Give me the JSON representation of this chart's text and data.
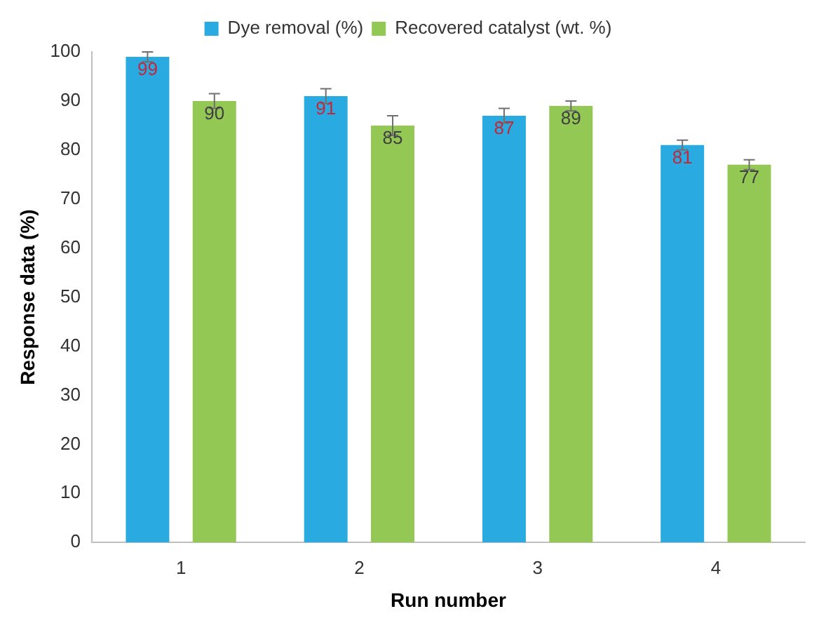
{
  "chart_data": {
    "type": "bar",
    "xlabel": "Run number",
    "ylabel": "Response data (%)",
    "categories": [
      "1",
      "2",
      "3",
      "4"
    ],
    "series": [
      {
        "name": "Dye removal (%)",
        "color": "#29abe2",
        "values": [
          99,
          91,
          87,
          81
        ],
        "errors": [
          1,
          1.5,
          1.5,
          1
        ]
      },
      {
        "name": "Recovered catalyst (wt. %)",
        "color": "#92c853",
        "values": [
          90,
          85,
          89,
          77
        ],
        "errors": [
          1.5,
          2,
          1,
          1
        ]
      }
    ],
    "ylim": [
      0,
      100
    ],
    "yticks": [
      0,
      10,
      20,
      30,
      40,
      50,
      60,
      70,
      80,
      90,
      100
    ],
    "grid": false,
    "legend": "top",
    "data_labels": true
  }
}
